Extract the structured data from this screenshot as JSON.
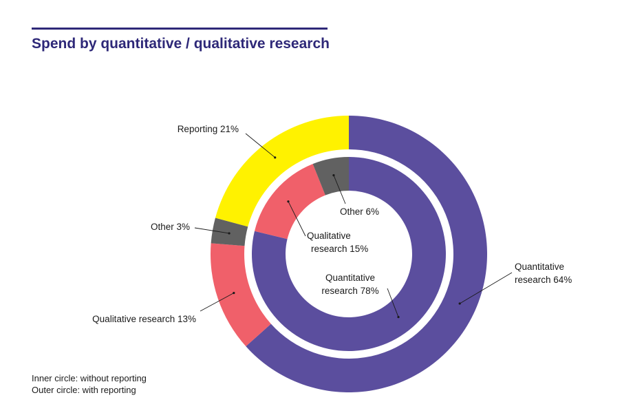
{
  "page": {
    "title": "Spend by quantitative / qualitative research",
    "notes": [
      "Inner circle: without reporting",
      "Outer circle: with reporting"
    ]
  },
  "chart_data": [
    {
      "type": "pie",
      "ring": "outer",
      "title": "",
      "slices": [
        {
          "label": "Quantitative research 64%",
          "value": 64,
          "color": "#5b4e9e"
        },
        {
          "label": "Qualitative research 13%",
          "value": 13,
          "color": "#f0606a"
        },
        {
          "label": "Other 3%",
          "value": 3,
          "color": "#616161"
        },
        {
          "label": "Reporting 21%",
          "value": 21,
          "color": "#fff200"
        }
      ]
    },
    {
      "type": "pie",
      "ring": "inner",
      "title": "",
      "slices": [
        {
          "label": "Quantitative research 78%",
          "value": 78,
          "color": "#5b4e9e"
        },
        {
          "label": "Qualitative research 15%",
          "value": 15,
          "color": "#f0606a"
        },
        {
          "label": "Other 6%",
          "value": 6,
          "color": "#616161"
        }
      ]
    }
  ]
}
